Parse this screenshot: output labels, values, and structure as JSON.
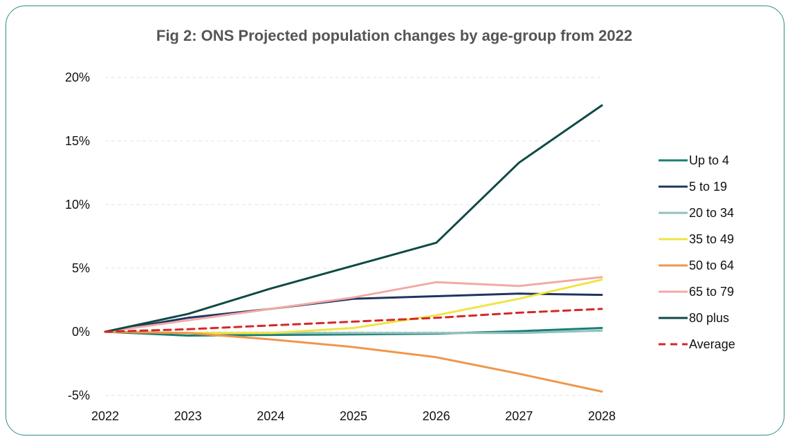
{
  "chart_data": {
    "type": "line",
    "title": "Fig 2: ONS Projected population changes by age-group from 2022",
    "xlabel": "",
    "ylabel": "",
    "x": [
      "2022",
      "2023",
      "2024",
      "2025",
      "2026",
      "2027",
      "2028"
    ],
    "ylim": [
      -5,
      20
    ],
    "yticks": [
      -5,
      0,
      5,
      10,
      15,
      20
    ],
    "ytick_labels": [
      "-5%",
      "0%",
      "5%",
      "10%",
      "15%",
      "20%"
    ],
    "grid": true,
    "legend_position": "right",
    "series": [
      {
        "name": "Up to 4",
        "color": "#1a7d72",
        "dash": false,
        "values": [
          0,
          -0.3,
          -0.25,
          -0.2,
          -0.15,
          0.05,
          0.3
        ]
      },
      {
        "name": "5 to 19",
        "color": "#1f3460",
        "dash": false,
        "values": [
          0,
          1.1,
          1.8,
          2.6,
          2.8,
          3.0,
          2.9
        ]
      },
      {
        "name": "20 to 34",
        "color": "#8fc1bd",
        "dash": false,
        "values": [
          0,
          -0.1,
          -0.1,
          -0.1,
          -0.1,
          -0.1,
          0.1
        ]
      },
      {
        "name": "35 to 49",
        "color": "#f0e442",
        "dash": false,
        "values": [
          0,
          -0.1,
          -0.1,
          0.3,
          1.3,
          2.6,
          4.1
        ]
      },
      {
        "name": "50 to 64",
        "color": "#f0964a",
        "dash": false,
        "values": [
          0,
          -0.1,
          -0.6,
          -1.2,
          -2.0,
          -3.3,
          -4.7
        ]
      },
      {
        "name": "65 to 79",
        "color": "#f2aaa4",
        "dash": false,
        "values": [
          0,
          0.9,
          1.8,
          2.7,
          3.9,
          3.6,
          4.3
        ]
      },
      {
        "name": "80 plus",
        "color": "#0e4a44",
        "dash": false,
        "values": [
          0,
          1.4,
          3.4,
          5.2,
          7.0,
          13.3,
          17.8
        ]
      },
      {
        "name": "Average",
        "color": "#d62728",
        "dash": true,
        "values": [
          0,
          0.2,
          0.5,
          0.8,
          1.1,
          1.5,
          1.8
        ]
      }
    ]
  }
}
